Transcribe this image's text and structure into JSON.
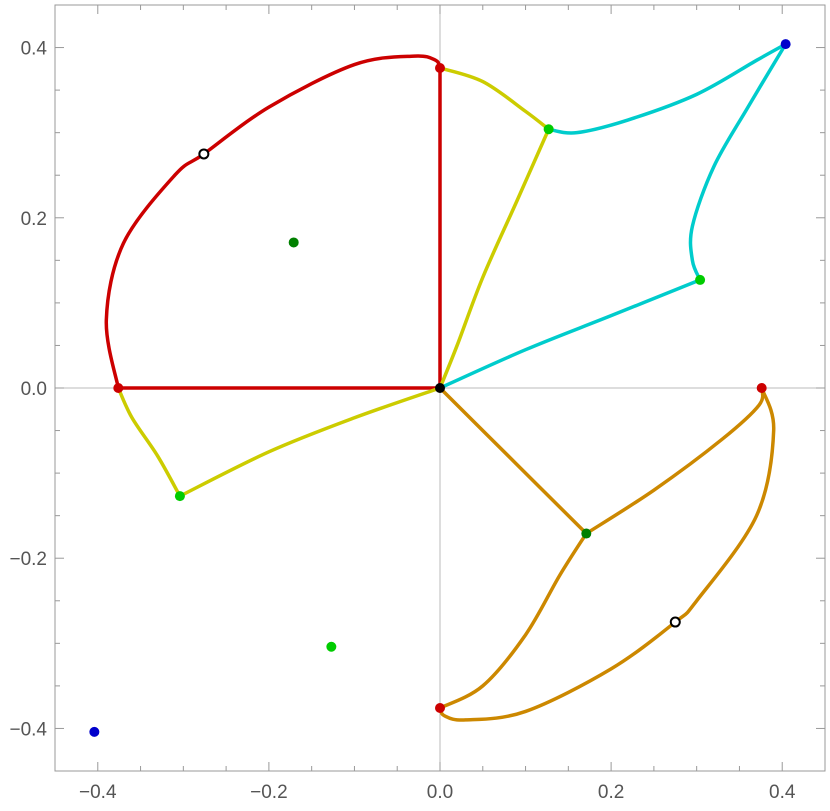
{
  "chart_data": {
    "type": "scatter",
    "title": "",
    "xlabel": "",
    "ylabel": "",
    "xlim": [
      -0.45,
      0.45
    ],
    "ylim": [
      -0.45,
      0.45
    ],
    "xticks": [
      {
        "value": -0.4,
        "label": "−0.4"
      },
      {
        "value": -0.2,
        "label": "−0.2"
      },
      {
        "value": 0.0,
        "label": "0.0"
      },
      {
        "value": 0.2,
        "label": "0.2"
      },
      {
        "value": 0.4,
        "label": "0.4"
      }
    ],
    "yticks": [
      {
        "value": 0.4,
        "label": "0.4"
      },
      {
        "value": 0.2,
        "label": "0.2"
      },
      {
        "value": 0.0,
        "label": "0.0"
      },
      {
        "value": -0.2,
        "label": "−0.2"
      },
      {
        "value": -0.4,
        "label": "−0.4"
      }
    ],
    "minor_tick_step": 0.05,
    "frame": true,
    "axes_through_origin": true,
    "grid": false,
    "curves": [
      {
        "color": "#cc0000",
        "points": [
          [
            -0.376,
            0.0
          ],
          [
            -0.39,
            0.08
          ],
          [
            -0.37,
            0.17
          ],
          [
            -0.31,
            0.25
          ],
          [
            -0.276,
            0.275
          ],
          [
            -0.2,
            0.33
          ],
          [
            -0.1,
            0.38
          ],
          [
            -0.03,
            0.39
          ],
          [
            -0.005,
            0.385
          ],
          [
            0.0,
            0.376
          ]
        ]
      },
      {
        "color": "#cc0000",
        "points": [
          [
            0.0,
            0.376
          ],
          [
            0.0,
            0.25
          ],
          [
            0.0,
            0.1
          ],
          [
            0.0,
            0.0
          ]
        ]
      },
      {
        "color": "#cc0000",
        "points": [
          [
            0.0,
            0.0
          ],
          [
            -0.2,
            0.0
          ],
          [
            -0.376,
            0.0
          ]
        ]
      },
      {
        "color": "#cccc00",
        "points": [
          [
            0.0,
            0.376
          ],
          [
            0.05,
            0.36
          ],
          [
            0.1,
            0.325
          ],
          [
            0.127,
            0.304
          ]
        ]
      },
      {
        "color": "#cccc00",
        "points": [
          [
            0.127,
            0.304
          ],
          [
            0.09,
            0.22
          ],
          [
            0.05,
            0.13
          ],
          [
            0.02,
            0.05
          ],
          [
            0.0,
            0.0
          ]
        ]
      },
      {
        "color": "#cccc00",
        "points": [
          [
            0.0,
            0.0
          ],
          [
            -0.1,
            -0.035
          ],
          [
            -0.2,
            -0.075
          ],
          [
            -0.304,
            -0.127
          ]
        ]
      },
      {
        "color": "#cccc00",
        "points": [
          [
            -0.304,
            -0.127
          ],
          [
            -0.33,
            -0.08
          ],
          [
            -0.36,
            -0.035
          ],
          [
            -0.376,
            0.0
          ]
        ]
      },
      {
        "color": "#00cccc",
        "points": [
          [
            0.127,
            0.304
          ],
          [
            0.16,
            0.3
          ],
          [
            0.22,
            0.315
          ],
          [
            0.3,
            0.345
          ],
          [
            0.37,
            0.385
          ],
          [
            0.404,
            0.404
          ]
        ]
      },
      {
        "color": "#00cccc",
        "points": [
          [
            0.404,
            0.404
          ],
          [
            0.36,
            0.33
          ],
          [
            0.32,
            0.26
          ],
          [
            0.295,
            0.19
          ],
          [
            0.295,
            0.15
          ],
          [
            0.304,
            0.127
          ]
        ]
      },
      {
        "color": "#00cccc",
        "points": [
          [
            0.304,
            0.127
          ],
          [
            0.2,
            0.085
          ],
          [
            0.1,
            0.045
          ],
          [
            0.0,
            0.0
          ]
        ]
      },
      {
        "color": "#cc8800",
        "points": [
          [
            0.0,
            0.0
          ],
          [
            0.09,
            -0.09
          ],
          [
            0.171,
            -0.171
          ]
        ]
      },
      {
        "color": "#cc8800",
        "points": [
          [
            0.171,
            -0.171
          ],
          [
            0.25,
            -0.12
          ],
          [
            0.33,
            -0.06
          ],
          [
            0.373,
            -0.02
          ],
          [
            0.376,
            0.0
          ]
        ]
      },
      {
        "color": "#cc8800",
        "points": [
          [
            0.376,
            0.0
          ],
          [
            0.39,
            -0.05
          ],
          [
            0.37,
            -0.15
          ],
          [
            0.3,
            -0.25
          ],
          [
            0.275,
            -0.275
          ],
          [
            0.2,
            -0.33
          ],
          [
            0.1,
            -0.38
          ],
          [
            0.03,
            -0.39
          ],
          [
            0.005,
            -0.385
          ],
          [
            0.0,
            -0.376
          ]
        ]
      },
      {
        "color": "#cc8800",
        "points": [
          [
            0.0,
            -0.376
          ],
          [
            0.05,
            -0.35
          ],
          [
            0.1,
            -0.29
          ],
          [
            0.14,
            -0.22
          ],
          [
            0.171,
            -0.171
          ]
        ]
      }
    ],
    "points": [
      {
        "x": -0.404,
        "y": -0.404,
        "color": "#0000cc",
        "hollow": false
      },
      {
        "x": 0.404,
        "y": 0.404,
        "color": "#0000cc",
        "hollow": false
      },
      {
        "x": -0.376,
        "y": 0.0,
        "color": "#cc0000",
        "hollow": false
      },
      {
        "x": 0.0,
        "y": 0.376,
        "color": "#cc0000",
        "hollow": false
      },
      {
        "x": 0.376,
        "y": 0.0,
        "color": "#cc0000",
        "hollow": false
      },
      {
        "x": 0.0,
        "y": -0.376,
        "color": "#cc0000",
        "hollow": false
      },
      {
        "x": 0.127,
        "y": 0.304,
        "color": "#00cc00",
        "hollow": false
      },
      {
        "x": 0.304,
        "y": 0.127,
        "color": "#00cc00",
        "hollow": false
      },
      {
        "x": -0.304,
        "y": -0.127,
        "color": "#00cc00",
        "hollow": false
      },
      {
        "x": -0.127,
        "y": -0.304,
        "color": "#00cc00",
        "hollow": false
      },
      {
        "x": -0.171,
        "y": 0.171,
        "color": "#008000",
        "hollow": false
      },
      {
        "x": 0.171,
        "y": -0.171,
        "color": "#008000",
        "hollow": false
      },
      {
        "x": -0.276,
        "y": 0.275,
        "color": "#000000",
        "hollow": true
      },
      {
        "x": 0.275,
        "y": -0.275,
        "color": "#000000",
        "hollow": true
      },
      {
        "x": 0.0,
        "y": 0.0,
        "color": "#000000",
        "hollow": false
      }
    ]
  }
}
